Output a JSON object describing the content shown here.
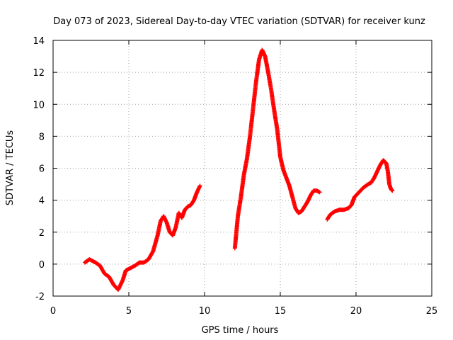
{
  "chart_data": {
    "type": "scatter",
    "title": "Day 073 of 2023, Sidereal Day-to-day VTEC variation (SDTVAR) for receiver kunz",
    "xlabel": "GPS time / hours",
    "ylabel": "SDTVAR / TECUs",
    "xlim": [
      0,
      25
    ],
    "ylim": [
      -2,
      14
    ],
    "xticks": [
      0,
      5,
      10,
      15,
      20,
      25
    ],
    "yticks": [
      -2,
      0,
      2,
      4,
      6,
      8,
      10,
      12,
      14
    ],
    "xtick_labels": [
      "0",
      "5",
      "10",
      "15",
      "20",
      "25"
    ],
    "ytick_labels": [
      "-2",
      "0",
      "2",
      "4",
      "6",
      "8",
      "10",
      "12",
      "14"
    ],
    "grid": true,
    "marker": "+",
    "color": "#ff0000",
    "series": [
      {
        "name": "segment-1",
        "x": [
          2.1,
          2.4,
          2.8,
          3.1,
          3.4,
          3.7,
          4.0,
          4.3,
          4.6,
          4.8,
          5.0,
          5.4,
          5.7,
          6.0,
          6.3,
          6.6,
          6.9,
          7.1,
          7.3,
          7.5,
          7.7,
          7.9,
          8.1,
          8.3,
          8.5,
          8.7,
          8.9,
          9.1,
          9.3,
          9.5,
          9.7
        ],
        "y": [
          0.1,
          0.3,
          0.1,
          -0.1,
          -0.6,
          -0.8,
          -1.3,
          -1.6,
          -1.0,
          -0.4,
          -0.3,
          -0.1,
          0.1,
          0.1,
          0.3,
          0.8,
          1.8,
          2.7,
          3.0,
          2.6,
          2.0,
          1.8,
          2.3,
          3.2,
          2.9,
          3.4,
          3.6,
          3.7,
          4.0,
          4.5,
          4.9
        ]
      },
      {
        "name": "segment-2",
        "x": [
          12.0,
          12.2,
          12.4,
          12.6,
          12.8,
          13.0,
          13.2,
          13.4,
          13.6,
          13.8,
          14.0,
          14.2,
          14.4,
          14.6,
          14.8,
          15.0,
          15.2,
          15.4,
          15.6,
          15.8,
          16.0,
          16.2,
          16.4,
          16.6,
          16.8,
          17.0,
          17.2,
          17.4,
          17.6
        ],
        "y": [
          1.0,
          3.0,
          4.2,
          5.6,
          6.6,
          8.0,
          9.7,
          11.4,
          12.8,
          13.4,
          13.0,
          12.0,
          10.9,
          9.6,
          8.4,
          6.7,
          5.9,
          5.4,
          4.9,
          4.2,
          3.5,
          3.2,
          3.3,
          3.6,
          3.9,
          4.3,
          4.6,
          4.6,
          4.5
        ]
      },
      {
        "name": "segment-3",
        "x": [
          18.1,
          18.3,
          18.6,
          18.9,
          19.2,
          19.5,
          19.7,
          19.9,
          20.2,
          20.5,
          20.8,
          21.0,
          21.2,
          21.4,
          21.6,
          21.8,
          22.0,
          22.1,
          22.2,
          22.3,
          22.4
        ],
        "y": [
          2.8,
          3.1,
          3.3,
          3.4,
          3.4,
          3.5,
          3.7,
          4.2,
          4.5,
          4.8,
          5.0,
          5.1,
          5.4,
          5.8,
          6.2,
          6.5,
          6.3,
          5.8,
          5.0,
          4.7,
          4.6
        ]
      }
    ]
  }
}
